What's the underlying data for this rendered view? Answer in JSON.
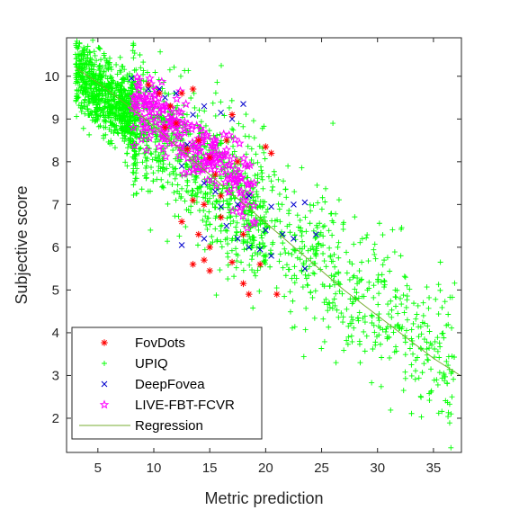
{
  "chart_data": {
    "type": "scatter",
    "title": "",
    "xlabel": "Metric prediction",
    "ylabel": "Subjective score",
    "xlim": [
      2.2,
      37.5
    ],
    "ylim": [
      1.2,
      10.9
    ],
    "xticks": [
      5,
      10,
      15,
      20,
      25,
      30,
      35
    ],
    "yticks": [
      2,
      3,
      4,
      5,
      6,
      7,
      8,
      9,
      10
    ],
    "grid": false,
    "legend_position": "bottom-left",
    "series": [
      {
        "name": "FovDots",
        "marker": "asterisk",
        "color": "#ff0000",
        "points": [
          [
            9.5,
            9.8
          ],
          [
            10.5,
            9.6
          ],
          [
            11.5,
            9.3
          ],
          [
            12.5,
            9.6
          ],
          [
            13.5,
            9.7
          ],
          [
            11.0,
            8.8
          ],
          [
            12.0,
            8.9
          ],
          [
            13.0,
            8.3
          ],
          [
            14.0,
            8.5
          ],
          [
            15.0,
            8.1
          ],
          [
            16.5,
            8.5
          ],
          [
            17.0,
            9.1
          ],
          [
            17.5,
            8.0
          ],
          [
            15.5,
            7.7
          ],
          [
            16.0,
            7.2
          ],
          [
            14.5,
            7.0
          ],
          [
            13.5,
            7.1
          ],
          [
            12.5,
            6.6
          ],
          [
            14.0,
            6.3
          ],
          [
            15.0,
            6.0
          ],
          [
            13.5,
            5.6
          ],
          [
            14.5,
            5.7
          ],
          [
            15.0,
            5.45
          ],
          [
            17.0,
            5.65
          ],
          [
            18.0,
            5.15
          ],
          [
            18.5,
            4.9
          ],
          [
            19.5,
            5.6
          ],
          [
            20.0,
            8.35
          ],
          [
            20.5,
            8.2
          ],
          [
            21.0,
            4.9
          ],
          [
            18.0,
            6.3
          ],
          [
            16.0,
            6.7
          ]
        ]
      },
      {
        "name": "UPIQ",
        "marker": "plus",
        "color": "#00ff00",
        "points": []
      },
      {
        "name": "DeepFovea",
        "marker": "x",
        "color": "#0000cc",
        "points": [
          [
            8.0,
            9.95
          ],
          [
            9.5,
            9.7
          ],
          [
            10.5,
            9.7
          ],
          [
            11.0,
            9.5
          ],
          [
            12.0,
            9.6
          ],
          [
            13.5,
            9.1
          ],
          [
            14.5,
            9.3
          ],
          [
            16.0,
            9.15
          ],
          [
            17.0,
            9.0
          ],
          [
            18.0,
            9.35
          ],
          [
            13.0,
            8.4
          ],
          [
            12.5,
            7.9
          ],
          [
            14.5,
            7.5
          ],
          [
            15.5,
            7.3
          ],
          [
            16.0,
            6.95
          ],
          [
            17.5,
            7.0
          ],
          [
            18.5,
            7.2
          ],
          [
            20.5,
            6.95
          ],
          [
            22.5,
            7.0
          ],
          [
            23.5,
            7.05
          ],
          [
            12.5,
            6.05
          ],
          [
            14.5,
            6.2
          ],
          [
            17.5,
            6.2
          ],
          [
            18.5,
            6.0
          ],
          [
            19.5,
            5.95
          ],
          [
            20.5,
            5.8
          ],
          [
            21.5,
            6.3
          ],
          [
            22.5,
            6.2
          ],
          [
            23.5,
            5.5
          ],
          [
            24.5,
            6.3
          ],
          [
            20.0,
            6.4
          ],
          [
            16.5,
            6.5
          ]
        ]
      },
      {
        "name": "LIVE-FBT-FCVR",
        "marker": "pentagram",
        "color": "#ff00ff",
        "points": []
      }
    ],
    "regression": {
      "name": "Regression",
      "color": "#77ac30",
      "x": [
        3.0,
        5.0,
        7.0,
        9.0,
        11.0,
        13.0,
        15.0,
        17.0,
        19.0,
        21.0,
        23.0,
        25.0,
        27.0,
        29.0,
        31.0,
        33.0,
        35.0,
        37.4
      ],
      "y": [
        10.2,
        9.85,
        9.45,
        9.05,
        8.6,
        8.15,
        7.7,
        7.25,
        6.8,
        6.35,
        5.9,
        5.45,
        5.0,
        4.6,
        4.2,
        3.8,
        3.4,
        3.0
      ]
    }
  }
}
